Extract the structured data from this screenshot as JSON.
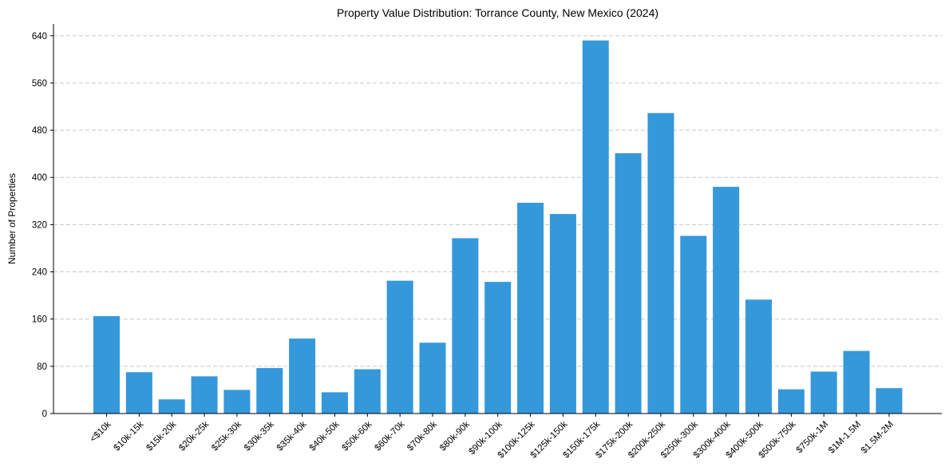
{
  "chart_data": {
    "type": "bar",
    "title": "Property Value Distribution: Torrance County, New Mexico (2024)",
    "xlabel": "",
    "ylabel": "Number of Properties",
    "ylim": [
      0,
      660
    ],
    "yticks": [
      0,
      80,
      160,
      240,
      320,
      400,
      480,
      560,
      640
    ],
    "grid": "horizontal dashed",
    "bar_color": "#3498db",
    "categories": [
      "<$10k",
      "$10k-15k",
      "$15k-20k",
      "$20k-25k",
      "$25k-30k",
      "$30k-35k",
      "$35k-40k",
      "$40k-50k",
      "$50k-60k",
      "$60k-70k",
      "$70k-80k",
      "$80k-90k",
      "$90k-100k",
      "$100k-125k",
      "$125k-150k",
      "$150k-175k",
      "$175k-200k",
      "$200k-250k",
      "$250k-300k",
      "$300k-400k",
      "$400k-500k",
      "$500k-750k",
      "$750k-1M",
      "$1M-1.5M",
      "$1.5M-2M"
    ],
    "values": [
      165,
      70,
      24,
      63,
      40,
      77,
      127,
      36,
      75,
      225,
      120,
      297,
      223,
      357,
      338,
      632,
      441,
      509,
      301,
      384,
      193,
      41,
      71,
      106,
      43
    ]
  }
}
